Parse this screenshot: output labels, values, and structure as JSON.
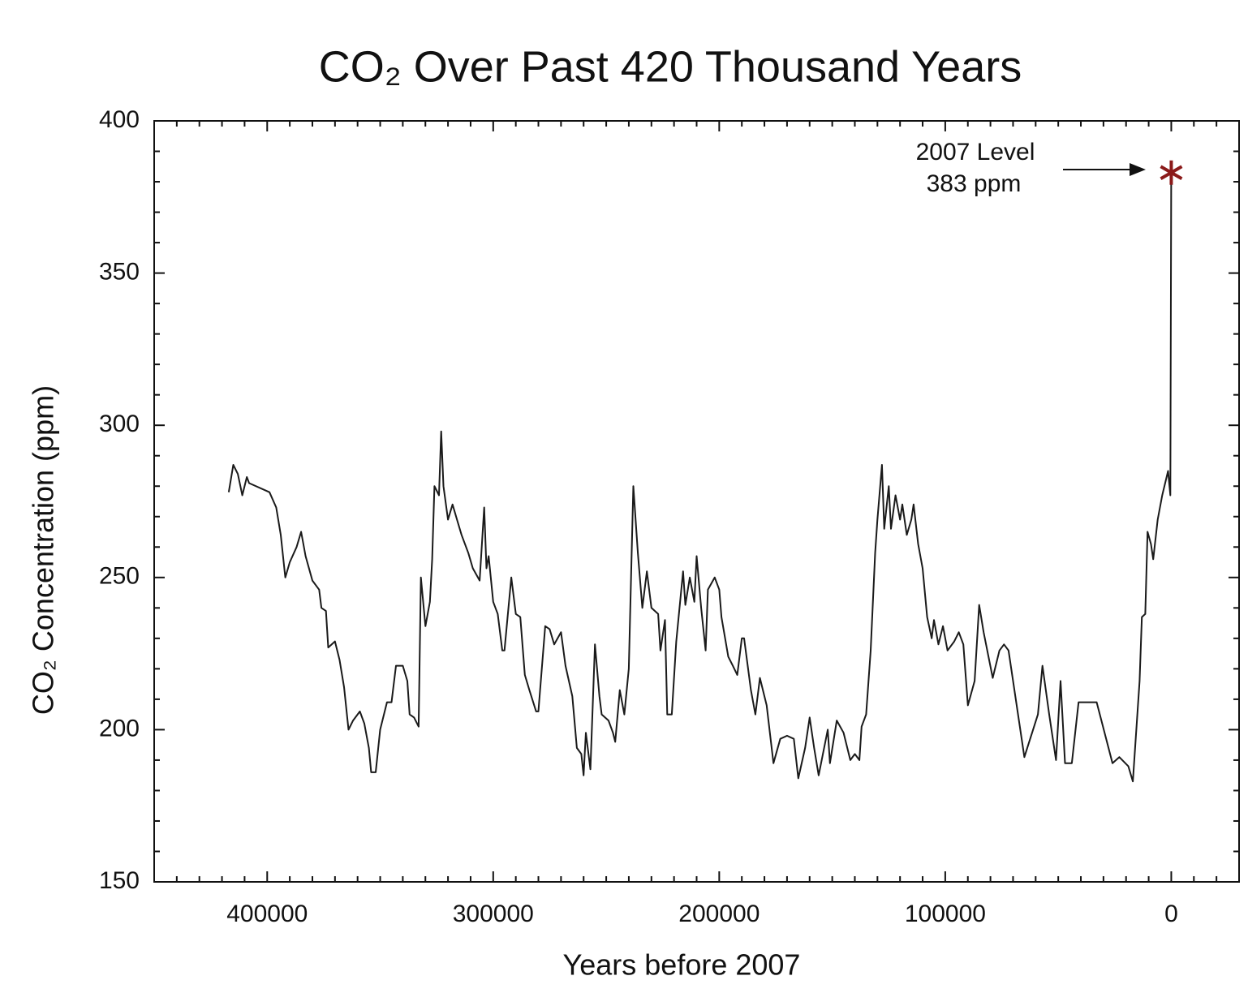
{
  "chart_data": {
    "type": "line",
    "title": "CO₂ Over Past 420 Thousand Years",
    "x_label": "Years before 2007",
    "y_label": "CO₂ Concentration (ppm)",
    "annotation": [
      "2007 Level",
      "383 ppm"
    ],
    "color": "#1a1a1a",
    "marker_color": "#8b1a1a",
    "xlim": [
      450000,
      -30000
    ],
    "ylim": [
      150,
      400
    ],
    "xticks": [
      400000,
      300000,
      200000,
      100000,
      0
    ],
    "yticks": [
      150,
      200,
      250,
      300,
      350,
      400
    ],
    "xminorticks": [
      -20000,
      -10000,
      10000,
      20000,
      30000,
      40000,
      50000,
      60000,
      70000,
      80000,
      90000,
      110000,
      120000,
      130000,
      140000,
      150000,
      160000,
      170000,
      180000,
      190000,
      210000,
      220000,
      230000,
      240000,
      250000,
      260000,
      270000,
      280000,
      290000,
      310000,
      320000,
      330000,
      340000,
      350000,
      360000,
      370000,
      380000,
      390000,
      410000,
      420000,
      430000,
      440000
    ],
    "yminorticks": [
      160,
      170,
      180,
      190,
      210,
      220,
      230,
      240,
      260,
      270,
      280,
      290,
      310,
      320,
      330,
      340,
      360,
      370,
      380,
      390
    ],
    "x": [
      417000,
      415000,
      413000,
      411000,
      409000,
      408000,
      399000,
      396000,
      394000,
      392000,
      390000,
      387000,
      385000,
      383000,
      380000,
      377000,
      376000,
      374000,
      373000,
      370000,
      368000,
      366000,
      364000,
      362000,
      359000,
      357000,
      355000,
      354000,
      352000,
      350000,
      347000,
      345000,
      343000,
      340000,
      338000,
      337000,
      335000,
      333000,
      332000,
      330000,
      328000,
      327000,
      326000,
      324000,
      323000,
      322000,
      320000,
      318000,
      316000,
      314000,
      311000,
      309000,
      306000,
      304000,
      303000,
      302000,
      300000,
      298000,
      296000,
      295000,
      293000,
      292000,
      290000,
      288000,
      286000,
      284000,
      281000,
      280000,
      277000,
      275000,
      273000,
      270000,
      268000,
      265000,
      263000,
      261000,
      260000,
      259000,
      257000,
      255000,
      253000,
      252000,
      249000,
      247000,
      246000,
      244000,
      242000,
      240000,
      238000,
      236000,
      234000,
      232000,
      230000,
      227000,
      226000,
      224000,
      223000,
      221000,
      219000,
      216000,
      215000,
      213000,
      211000,
      210000,
      208000,
      206000,
      205000,
      202000,
      200000,
      199000,
      196000,
      194000,
      192000,
      190000,
      189000,
      186000,
      184000,
      182000,
      179000,
      176000,
      173000,
      170000,
      167000,
      165000,
      162000,
      160000,
      158000,
      156000,
      152000,
      151000,
      148000,
      145000,
      142000,
      140000,
      138000,
      137000,
      135000,
      133000,
      131000,
      130000,
      128000,
      127000,
      125000,
      124000,
      122000,
      120000,
      119000,
      117000,
      115000,
      114000,
      112000,
      110000,
      108000,
      106000,
      105000,
      103000,
      101000,
      99000,
      96000,
      94000,
      92000,
      90000,
      87000,
      85000,
      83000,
      79000,
      76000,
      74000,
      72000,
      65000,
      59000,
      57000,
      54000,
      51000,
      49000,
      47000,
      44000,
      41000,
      33000,
      26000,
      23000,
      19000,
      17000,
      14000,
      13000,
      11500,
      10500,
      9000,
      8000,
      6000,
      4000,
      1400,
      400,
      0
    ],
    "values": [
      278,
      287,
      284,
      277,
      283,
      281,
      278,
      273,
      264,
      250,
      255,
      260,
      265,
      257,
      249,
      246,
      240,
      239,
      227,
      229,
      223,
      214,
      200,
      203,
      206,
      202,
      194,
      186,
      186,
      200,
      209,
      209,
      221,
      221,
      216,
      205,
      204,
      201,
      250,
      234,
      242,
      256,
      280,
      277,
      298,
      280,
      269,
      274,
      269,
      264,
      258,
      253,
      249,
      273,
      253,
      257,
      242,
      238,
      226,
      226,
      242,
      250,
      238,
      237,
      218,
      213,
      206,
      206,
      234,
      233,
      228,
      232,
      221,
      211,
      194,
      192,
      185,
      199,
      187,
      228,
      211,
      205,
      203,
      199,
      196,
      213,
      205,
      220,
      280,
      258,
      240,
      252,
      240,
      238,
      226,
      236,
      205,
      205,
      229,
      252,
      241,
      250,
      242,
      257,
      240,
      226,
      246,
      250,
      246,
      237,
      224,
      221,
      218,
      230,
      230,
      213,
      205,
      217,
      208,
      189,
      197,
      198,
      197,
      184,
      194,
      204,
      194,
      185,
      200,
      189,
      203,
      199,
      190,
      192,
      190,
      201,
      205,
      226,
      258,
      269,
      287,
      266,
      280,
      266,
      277,
      269,
      274,
      264,
      269,
      274,
      261,
      253,
      237,
      230,
      236,
      228,
      234,
      226,
      229,
      232,
      228,
      208,
      216,
      241,
      232,
      217,
      226,
      228,
      226,
      191,
      205,
      221,
      205,
      190,
      216,
      189,
      189,
      209,
      209,
      189,
      191,
      188,
      183,
      216,
      237,
      238,
      265,
      261,
      256,
      269,
      277,
      285,
      277,
      383
    ]
  }
}
